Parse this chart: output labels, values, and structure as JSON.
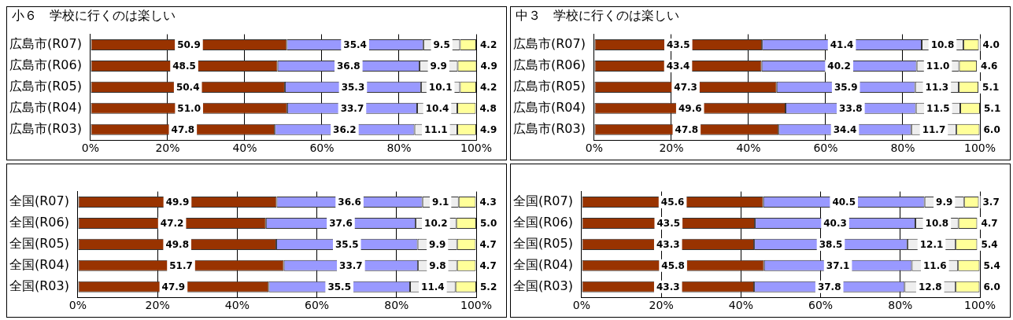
{
  "chart_data": [
    {
      "type": "bar",
      "orientation": "horizontal",
      "stacked": true,
      "title": "小６　学校に行くのは楽しい",
      "categories": [
        "広島市(R07)",
        "広島市(R06)",
        "広島市(R05)",
        "広島市(R04)",
        "広島市(R03)"
      ],
      "xlim": [
        0,
        100
      ],
      "xticks": [
        {
          "value": 0,
          "label": "0%"
        },
        {
          "value": 20,
          "label": "20%"
        },
        {
          "value": 40,
          "label": "40%"
        },
        {
          "value": 60,
          "label": "60%"
        },
        {
          "value": 80,
          "label": "80%"
        },
        {
          "value": 100,
          "label": "100%"
        }
      ],
      "grid": "x",
      "legend": false,
      "series": [
        {
          "color": "#993300",
          "values": [
            50.9,
            48.5,
            50.4,
            51.0,
            47.8
          ],
          "value_labels": [
            "50.9",
            "48.5",
            "50.4",
            "51.0",
            "47.8"
          ]
        },
        {
          "color": "#9999ff",
          "values": [
            35.4,
            36.8,
            35.3,
            33.7,
            36.2
          ],
          "value_labels": [
            "35.4",
            "36.8",
            "35.3",
            "33.7",
            "36.2"
          ]
        },
        {
          "color": "#eeeeee",
          "values": [
            9.5,
            9.9,
            10.1,
            10.4,
            11.1
          ],
          "value_labels": [
            "9.5",
            "9.9",
            "10.1",
            "10.4",
            "11.1"
          ]
        },
        {
          "color": "#ffff99",
          "values": [
            4.2,
            4.9,
            4.2,
            4.8,
            4.9
          ],
          "value_labels": [
            "4.2",
            "4.9",
            "4.2",
            "4.8",
            "4.9"
          ]
        }
      ]
    },
    {
      "type": "bar",
      "orientation": "horizontal",
      "stacked": true,
      "title": "中３　学校に行くのは楽しい",
      "categories": [
        "広島市(R07)",
        "広島市(R06)",
        "広島市(R05)",
        "広島市(R04)",
        "広島市(R03)"
      ],
      "xlim": [
        0,
        100
      ],
      "xticks": [
        {
          "value": 0,
          "label": "0%"
        },
        {
          "value": 20,
          "label": "20%"
        },
        {
          "value": 40,
          "label": "40%"
        },
        {
          "value": 60,
          "label": "60%"
        },
        {
          "value": 80,
          "label": "80%"
        },
        {
          "value": 100,
          "label": "100%"
        }
      ],
      "grid": "x",
      "legend": false,
      "series": [
        {
          "color": "#993300",
          "values": [
            43.5,
            43.4,
            47.3,
            49.6,
            47.8
          ],
          "value_labels": [
            "43.5",
            "43.4",
            "47.3",
            "49.6",
            "47.8"
          ]
        },
        {
          "color": "#9999ff",
          "values": [
            41.4,
            40.2,
            35.9,
            33.8,
            34.4
          ],
          "value_labels": [
            "41.4",
            "40.2",
            "35.9",
            "33.8",
            "34.4"
          ]
        },
        {
          "color": "#eeeeee",
          "values": [
            10.8,
            11.0,
            11.3,
            11.5,
            11.7
          ],
          "value_labels": [
            "10.8",
            "11.0",
            "11.3",
            "11.5",
            "11.7"
          ]
        },
        {
          "color": "#ffff99",
          "values": [
            4.0,
            4.6,
            5.1,
            5.1,
            6.0
          ],
          "value_labels": [
            "4.0",
            "4.6",
            "5.1",
            "5.1",
            "6.0"
          ]
        }
      ]
    },
    {
      "type": "bar",
      "orientation": "horizontal",
      "stacked": true,
      "categories": [
        "全国(R07)",
        "全国(R06)",
        "全国(R05)",
        "全国(R04)",
        "全国(R03)"
      ],
      "xlim": [
        0,
        100
      ],
      "xticks": [
        {
          "value": 0,
          "label": "0%"
        },
        {
          "value": 20,
          "label": "20%"
        },
        {
          "value": 40,
          "label": "40%"
        },
        {
          "value": 60,
          "label": "60%"
        },
        {
          "value": 80,
          "label": "80%"
        },
        {
          "value": 100,
          "label": "100%"
        }
      ],
      "grid": "x",
      "legend": false,
      "series": [
        {
          "color": "#993300",
          "values": [
            49.9,
            47.2,
            49.8,
            51.7,
            47.9
          ],
          "value_labels": [
            "49.9",
            "47.2",
            "49.8",
            "51.7",
            "47.9"
          ]
        },
        {
          "color": "#9999ff",
          "values": [
            36.6,
            37.6,
            35.5,
            33.7,
            35.5
          ],
          "value_labels": [
            "36.6",
            "37.6",
            "35.5",
            "33.7",
            "35.5"
          ]
        },
        {
          "color": "#eeeeee",
          "values": [
            9.1,
            10.2,
            9.9,
            9.8,
            11.4
          ],
          "value_labels": [
            "9.1",
            "10.2",
            "9.9",
            "9.8",
            "11.4"
          ]
        },
        {
          "color": "#ffff99",
          "values": [
            4.3,
            5.0,
            4.7,
            4.7,
            5.2
          ],
          "value_labels": [
            "4.3",
            "5.0",
            "4.7",
            "4.7",
            "5.2"
          ]
        }
      ]
    },
    {
      "type": "bar",
      "orientation": "horizontal",
      "stacked": true,
      "categories": [
        "全国(R07)",
        "全国(R06)",
        "全国(R05)",
        "全国(R04)",
        "全国(R03)"
      ],
      "xlim": [
        0,
        100
      ],
      "xticks": [
        {
          "value": 0,
          "label": "0%"
        },
        {
          "value": 20,
          "label": "20%"
        },
        {
          "value": 40,
          "label": "40%"
        },
        {
          "value": 60,
          "label": "60%"
        },
        {
          "value": 80,
          "label": "80%"
        },
        {
          "value": 100,
          "label": "100%"
        }
      ],
      "grid": "x",
      "legend": false,
      "series": [
        {
          "color": "#993300",
          "values": [
            45.6,
            43.5,
            43.3,
            45.8,
            43.3
          ],
          "value_labels": [
            "45.6",
            "43.5",
            "43.3",
            "45.8",
            "43.3"
          ]
        },
        {
          "color": "#9999ff",
          "values": [
            40.5,
            40.3,
            38.5,
            37.1,
            37.8
          ],
          "value_labels": [
            "40.5",
            "40.3",
            "38.5",
            "37.1",
            "37.8"
          ]
        },
        {
          "color": "#eeeeee",
          "values": [
            9.9,
            10.8,
            12.1,
            11.6,
            12.8
          ],
          "value_labels": [
            "9.9",
            "10.8",
            "12.1",
            "11.6",
            "12.8"
          ]
        },
        {
          "color": "#ffff99",
          "values": [
            3.7,
            4.7,
            5.4,
            5.4,
            6.0
          ],
          "value_labels": [
            "3.7",
            "4.7",
            "5.4",
            "5.4",
            "6.0"
          ]
        }
      ]
    }
  ]
}
